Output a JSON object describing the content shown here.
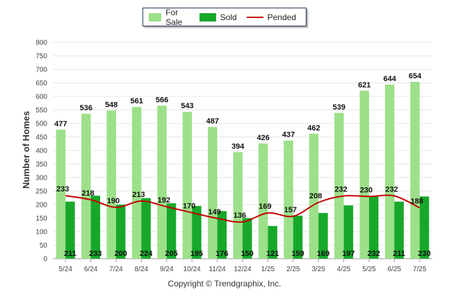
{
  "legend": {
    "for_sale": "For Sale",
    "sold": "Sold",
    "pended": "Pended"
  },
  "copyright": "Copyright © Trendgraphix, Inc.",
  "colors": {
    "for_sale": "#9de08a",
    "sold": "#17a82a",
    "pended": "#c40000"
  },
  "chart_data": {
    "type": "bar",
    "ylabel": "Number of Homes",
    "ylim": [
      0,
      800
    ],
    "yticks": [
      0,
      50,
      100,
      150,
      200,
      250,
      300,
      350,
      400,
      450,
      500,
      550,
      600,
      650,
      700,
      750,
      800
    ],
    "categories": [
      "5/24",
      "6/24",
      "7/24",
      "8/24",
      "9/24",
      "10/24",
      "11/24",
      "12/24",
      "1/25",
      "2/25",
      "3/25",
      "4/25",
      "5/25",
      "6/25",
      "7/25"
    ],
    "series": [
      {
        "name": "For Sale",
        "type": "bar",
        "values": [
          477,
          536,
          548,
          561,
          566,
          543,
          487,
          394,
          426,
          437,
          462,
          539,
          621,
          644,
          654
        ]
      },
      {
        "name": "Sold",
        "type": "bar",
        "values": [
          211,
          233,
          200,
          224,
          205,
          195,
          176,
          150,
          121,
          159,
          169,
          197,
          232,
          211,
          230
        ]
      },
      {
        "name": "Pended",
        "type": "line",
        "values": [
          233,
          218,
          190,
          213,
          192,
          170,
          149,
          136,
          169,
          157,
          208,
          232,
          230,
          232,
          188
        ]
      }
    ],
    "grid": true,
    "legend_position": "top"
  }
}
